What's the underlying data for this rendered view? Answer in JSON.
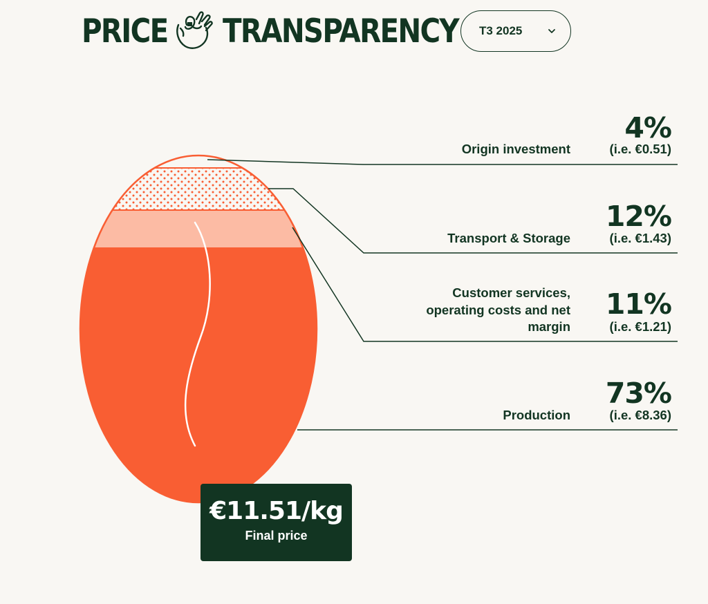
{
  "header": {
    "title_left": "PRICE",
    "title_right": "TRANSPARENCY",
    "icon": "ok-hand-icon",
    "period_select": {
      "value": "T3 2025",
      "icon": "chevron-down-icon"
    }
  },
  "colors": {
    "background": "#f9f7f3",
    "dark_green": "#123522",
    "production": "#f95e33",
    "customer_services": "#f95e33",
    "transport_storage": "#fcbba4",
    "origin_investment": "#f95e33",
    "bean_crease": "#ffffff"
  },
  "chart_data": {
    "type": "pie",
    "shape": "coffee-bean",
    "segments": [
      {
        "label": "Origin investment",
        "percent": 4,
        "amount": "(i.e. €0.51)",
        "pattern": "dotted"
      },
      {
        "label": "Transport & Storage",
        "percent": 12,
        "amount": "(i.e. €1.43)",
        "pattern": "light"
      },
      {
        "label": "Customer services, operating costs and net margin",
        "percent": 11,
        "amount": "(i.e. €1.21)",
        "pattern": "solid"
      },
      {
        "label": "Production",
        "percent": 73,
        "amount": "(i.e. €8.36)",
        "pattern": "solid"
      }
    ],
    "rows": [
      {
        "label": "Origin investment",
        "percent": "4%",
        "amount": "(i.e. €0.51)"
      },
      {
        "label": "Transport & Storage",
        "percent": "12%",
        "amount": "(i.e. €1.43)"
      },
      {
        "label": "Customer services, operating costs and net margin",
        "percent": "11%",
        "amount": "(i.e. €1.21)"
      },
      {
        "label": "Production",
        "percent": "73%",
        "amount": "(i.e. €8.36)"
      }
    ],
    "total": {
      "value": "€11.51/kg",
      "label": "Final price"
    }
  }
}
